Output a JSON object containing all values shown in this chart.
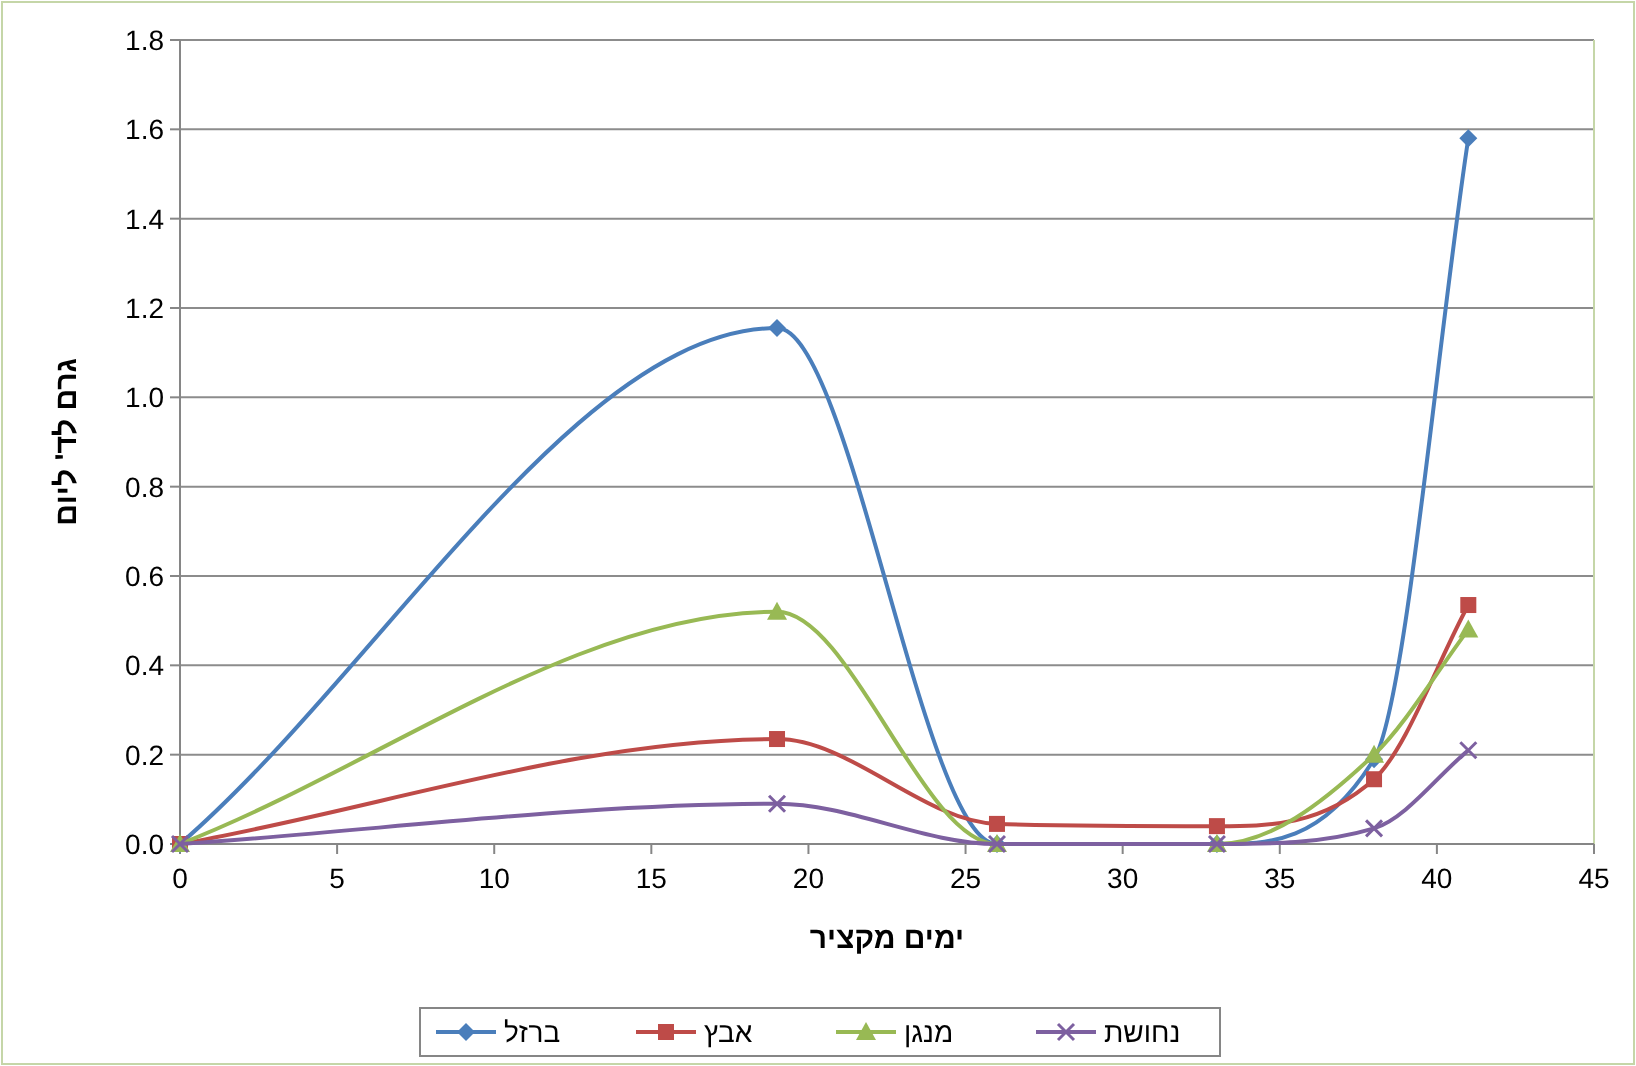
{
  "chart_data": {
    "type": "line",
    "xlabel": "ימים מקציר",
    "ylabel": "גרם לד' ליום",
    "x": [
      0,
      19,
      26,
      33,
      38,
      41
    ],
    "series": [
      {
        "name": "ברזל",
        "color": "#4a7ebb",
        "marker": "diamond",
        "values": [
          0,
          1.155,
          0,
          0,
          0.19,
          1.58
        ]
      },
      {
        "name": "אבץ",
        "color": "#be4b48",
        "marker": "square",
        "values": [
          0,
          0.235,
          0.045,
          0.04,
          0.145,
          0.535
        ]
      },
      {
        "name": "מנגן",
        "color": "#98b954",
        "marker": "triangle",
        "values": [
          0,
          0.52,
          0,
          0,
          0.2,
          0.48
        ]
      },
      {
        "name": "נחושת",
        "color": "#7d60a0",
        "marker": "cross",
        "values": [
          0,
          0.09,
          0,
          0,
          0.035,
          0.21
        ]
      }
    ],
    "xlim": [
      0,
      45
    ],
    "xticks": [
      0,
      5,
      10,
      15,
      20,
      25,
      30,
      35,
      40,
      45
    ],
    "ylim": [
      0,
      1.8
    ],
    "yticks": [
      {
        "value": 0,
        "label": "0.0"
      },
      {
        "value": 0.2,
        "label": "0.2"
      },
      {
        "value": 0.4,
        "label": "0.4"
      },
      {
        "value": 0.6,
        "label": "0.6"
      },
      {
        "value": 0.8,
        "label": "0.8"
      },
      {
        "value": 1,
        "label": "1.0"
      },
      {
        "value": 1.2,
        "label": "1.2"
      },
      {
        "value": 1.4,
        "label": "1.4"
      },
      {
        "value": 1.6,
        "label": "1.6"
      },
      {
        "value": 1.8,
        "label": "1.8"
      }
    ],
    "grid": "y",
    "legend": "bottom",
    "line_style": "solid"
  }
}
